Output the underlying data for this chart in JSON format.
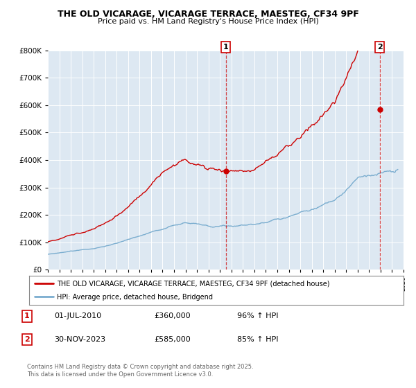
{
  "title": "THE OLD VICARAGE, VICARAGE TERRACE, MAESTEG, CF34 9PF",
  "subtitle": "Price paid vs. HM Land Registry's House Price Index (HPI)",
  "legend_line1": "THE OLD VICARAGE, VICARAGE TERRACE, MAESTEG, CF34 9PF (detached house)",
  "legend_line2": "HPI: Average price, detached house, Bridgend",
  "footnote": "Contains HM Land Registry data © Crown copyright and database right 2025.\nThis data is licensed under the Open Government Licence v3.0.",
  "point1_label": "1",
  "point1_date": "01-JUL-2010",
  "point1_price": "£360,000",
  "point1_hpi": "96% ↑ HPI",
  "point1_value": 360000,
  "point1_year": 2010.5,
  "point2_label": "2",
  "point2_date": "30-NOV-2023",
  "point2_price": "£585,000",
  "point2_hpi": "85% ↑ HPI",
  "point2_value": 585000,
  "point2_year": 2023.917,
  "red_color": "#cc0000",
  "blue_color": "#7aadcf",
  "plot_bg": "#dde8f2",
  "ylim_max": 800000,
  "xmin": 1995,
  "xmax": 2026
}
